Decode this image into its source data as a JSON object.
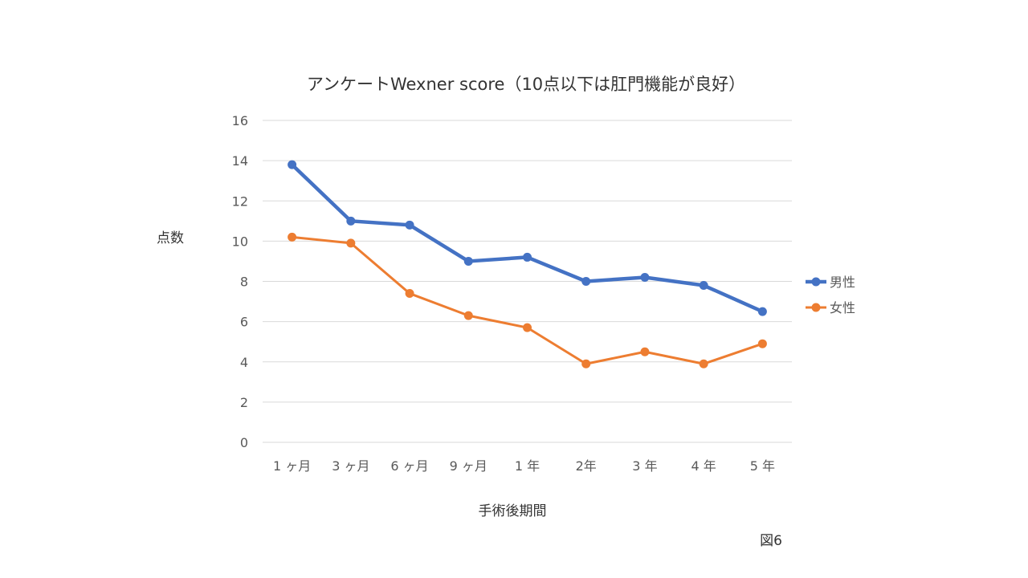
{
  "chart_data": {
    "type": "line",
    "title": "アンケートWexner score（10点以下は肛門機能が良好）",
    "xlabel": "手術後期間",
    "ylabel": "点数",
    "categories": [
      "1 ヶ月",
      "3 ヶ月",
      "6 ヶ月",
      "9 ヶ月",
      "1 年",
      "2年",
      "3 年",
      "4 年",
      "5 年"
    ],
    "ylim": [
      0,
      16
    ],
    "yticks": [
      "0",
      "2",
      "4",
      "6",
      "8",
      "10",
      "12",
      "14",
      "16"
    ],
    "grid": true,
    "legend_position": "right",
    "series": [
      {
        "name": "男性",
        "color": "#4472C4",
        "values": [
          13.8,
          11.0,
          10.8,
          9.0,
          9.2,
          8.0,
          8.2,
          7.8,
          6.5
        ]
      },
      {
        "name": "女性",
        "color": "#ED7D31",
        "values": [
          10.2,
          9.9,
          7.4,
          6.3,
          5.7,
          3.9,
          4.5,
          3.9,
          4.9
        ]
      }
    ],
    "figure_label": "図6"
  }
}
